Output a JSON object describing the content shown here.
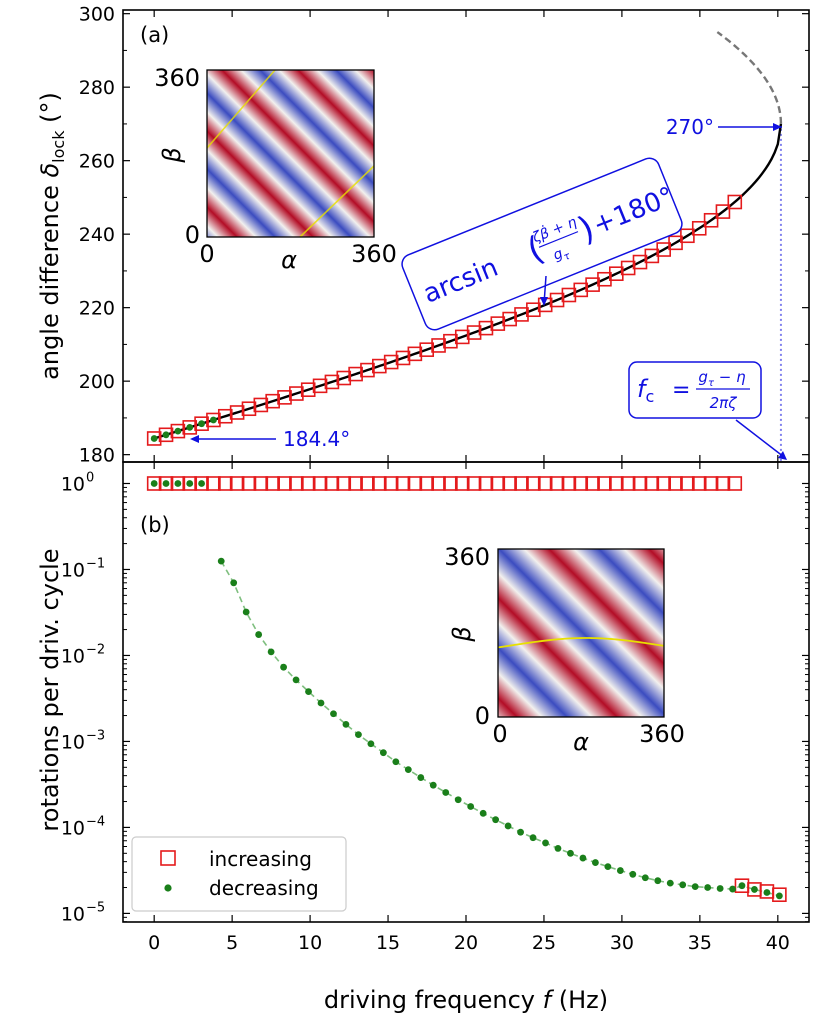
{
  "chart_data": [
    {
      "panel": "a",
      "type": "line",
      "panel_label": "(a)",
      "ylabel_prefix": "angle difference",
      "ylabel_symbol": "δ",
      "ylabel_sub": "lock",
      "ylabel_unit": "(°)",
      "xlim": [
        -2,
        42
      ],
      "ylim": [
        178,
        301
      ],
      "yticks": [
        180,
        200,
        220,
        240,
        260,
        280,
        300
      ],
      "theory_curve": {
        "name": "stable branch (solid black)",
        "fc": 40.2,
        "f0": 0.0,
        "offset_deg": 180,
        "asymptote_deg": 270,
        "start_deg": 184.4
      },
      "unstable_branch": {
        "name": "unstable branch (dashed grey)",
        "y_start": 270,
        "y_end": 295
      },
      "increasing_x": [
        0.0,
        0.76,
        1.52,
        2.28,
        3.04,
        3.8,
        4.56,
        5.32,
        6.08,
        6.84,
        7.6,
        8.36,
        9.12,
        9.88,
        10.64,
        11.4,
        12.16,
        12.92,
        13.68,
        14.44,
        15.2,
        15.96,
        16.72,
        17.48,
        18.24,
        19.0,
        19.76,
        20.52,
        21.28,
        22.04,
        22.8,
        23.56,
        24.32,
        25.08,
        25.84,
        26.6,
        27.36,
        28.12,
        28.88,
        29.64,
        30.4,
        31.16,
        31.92,
        32.68,
        33.44,
        34.2,
        34.96,
        35.72,
        36.48,
        37.24
      ],
      "decreasing_x": [
        0.0,
        0.76,
        1.52,
        2.28,
        3.04,
        3.8
      ],
      "annotations": {
        "start_label": "184.4°",
        "end_label": "270°",
        "formula_main": "arcsin",
        "formula_num": "ζβ̇ + η",
        "formula_den": "g",
        "formula_den_sub": "τ",
        "formula_tail": "+180°",
        "fc_symbol": "f",
        "fc_sub": "c",
        "fc_eq": "=",
        "fc_num": "g",
        "fc_num_sub": "τ",
        "fc_num_tail": " − η",
        "fc_den": "2πζ"
      },
      "inset": {
        "ylabel": "β",
        "xlabel": "α",
        "ticks_min": "0",
        "ticks_max": "360",
        "contour": "diagonal lines"
      }
    },
    {
      "panel": "b",
      "type": "scatter",
      "panel_label": "(b)",
      "scale": "log",
      "ylabel": "rotations per driv. cycle",
      "xlabel_prefix": "driving frequency",
      "xlabel_symbol": "f",
      "xlabel_unit": "(Hz)",
      "xlim": [
        -2,
        42
      ],
      "xticks": [
        0,
        5,
        10,
        15,
        20,
        25,
        30,
        35,
        40
      ],
      "ylim_exp": [
        -5.1,
        0.25
      ],
      "ytick_exponents": [
        0,
        -1,
        -2,
        -3,
        -4,
        -5
      ],
      "ytick_base": "10",
      "ytick_sup": [
        "0",
        "−1",
        "−2",
        "−3",
        "−4",
        "−5"
      ],
      "increasing": {
        "name": "increasing",
        "x": [
          0.0,
          0.76,
          1.52,
          2.28,
          3.04,
          3.8,
          4.56,
          5.32,
          6.08,
          6.84,
          7.6,
          8.36,
          9.12,
          9.88,
          10.64,
          11.4,
          12.16,
          12.92,
          13.68,
          14.44,
          15.2,
          15.96,
          16.72,
          17.48,
          18.24,
          19.0,
          19.76,
          20.52,
          21.28,
          22.04,
          22.8,
          23.56,
          24.32,
          25.08,
          25.84,
          26.6,
          27.36,
          28.12,
          28.88,
          29.64,
          30.4,
          31.16,
          31.92,
          32.68,
          33.44,
          34.2,
          34.96,
          35.72,
          36.48,
          37.24,
          37.7,
          38.5,
          39.3,
          40.1
        ],
        "y": [
          1,
          1,
          1,
          1,
          1,
          1,
          1,
          1,
          1,
          1,
          1,
          1,
          1,
          1,
          1,
          1,
          1,
          1,
          1,
          1,
          1,
          1,
          1,
          1,
          1,
          1,
          1,
          1,
          1,
          1,
          1,
          1,
          1,
          1,
          1,
          1,
          1,
          1,
          1,
          1,
          1,
          1,
          1,
          1,
          1,
          1,
          1,
          1,
          1,
          1,
          2.1e-05,
          1.9e-05,
          1.8e-05,
          1.65e-05
        ]
      },
      "decreasing": {
        "name": "decreasing",
        "x": [
          0.0,
          0.76,
          1.52,
          2.28,
          3.04,
          4.3,
          5.1,
          5.9,
          6.7,
          7.5,
          8.3,
          9.1,
          9.9,
          10.7,
          11.5,
          12.3,
          13.1,
          13.9,
          14.7,
          15.5,
          16.3,
          17.1,
          17.9,
          18.7,
          19.5,
          20.3,
          21.1,
          21.9,
          22.7,
          23.5,
          24.3,
          25.1,
          25.9,
          26.7,
          27.5,
          28.3,
          29.1,
          29.9,
          30.7,
          31.5,
          32.3,
          33.1,
          33.9,
          34.7,
          35.5,
          36.3,
          37.1,
          37.7,
          38.5,
          39.3,
          40.1
        ],
        "y": [
          1,
          1,
          1,
          1,
          1,
          0.125,
          0.07,
          0.032,
          0.0175,
          0.011,
          0.0073,
          0.0052,
          0.0038,
          0.0028,
          0.0021,
          0.00158,
          0.0012,
          0.00094,
          0.00074,
          0.00058,
          0.00047,
          0.00038,
          0.00031,
          0.000255,
          0.00021,
          0.000175,
          0.000146,
          0.000123,
          0.000104,
          8.8e-05,
          7.6e-05,
          6.6e-05,
          5.7e-05,
          5e-05,
          4.4e-05,
          3.9e-05,
          3.5e-05,
          3.15e-05,
          2.85e-05,
          2.6e-05,
          2.4e-05,
          2.25e-05,
          2.15e-05,
          2.05e-05,
          2e-05,
          1.95e-05,
          1.92e-05,
          2.1e-05,
          1.9e-05,
          1.75e-05,
          1.6e-05
        ]
      },
      "legend": {
        "position": "bottom-left",
        "increasing_label": "increasing",
        "decreasing_label": "decreasing"
      },
      "inset": {
        "ylabel": "β",
        "xlabel": "α",
        "ticks_min": "0",
        "ticks_max": "360",
        "contour": "sinusoidal line"
      }
    }
  ],
  "colors": {
    "increasing": "#e41a1c",
    "decreasing": "#1a7f1a",
    "theory": "#000000",
    "unstable": "#777777",
    "annotation": "#1010e0",
    "guide": "#8080ee",
    "fit_dashed": "#7fbf7f",
    "inset_red": "#b30d26",
    "inset_blue": "#3b4cc0",
    "inset_white": "#f2f0ee",
    "inset_contour": "#e8e000"
  }
}
